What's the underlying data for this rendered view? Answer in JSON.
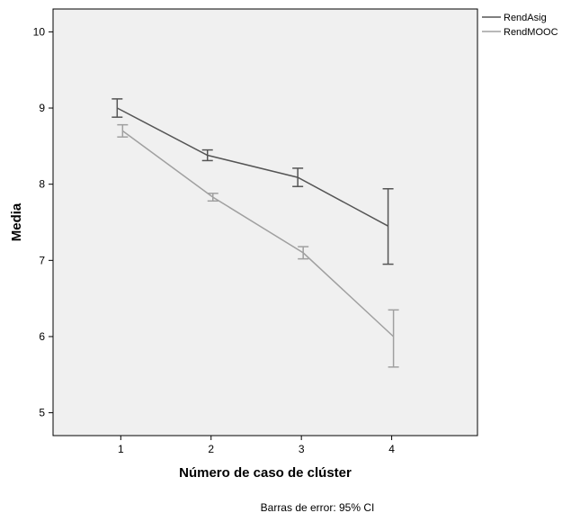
{
  "chart_data": {
    "type": "line",
    "x": [
      1,
      2,
      3,
      4
    ],
    "xlabel": "Número de caso de clúster",
    "ylabel": "Media",
    "ylim": [
      4.7,
      10.3
    ],
    "xlim": [
      0.25,
      4.95
    ],
    "xticks": [
      "1",
      "2",
      "3",
      "4"
    ],
    "yticks": [
      "5",
      "6",
      "7",
      "8",
      "9",
      "10"
    ],
    "grid": false,
    "legend_position": "top-right outside",
    "footnote": "Barras de error: 95% CI",
    "series": [
      {
        "name": "RendAsig",
        "color": "#555555",
        "values": [
          9.0,
          8.38,
          8.09,
          7.45
        ],
        "ci_low": [
          8.88,
          8.31,
          7.97,
          6.95
        ],
        "ci_high": [
          9.12,
          8.45,
          8.21,
          7.94
        ]
      },
      {
        "name": "RendMOOC",
        "color": "#a0a0a0",
        "values": [
          8.7,
          7.83,
          7.1,
          6.0
        ],
        "ci_low": [
          8.62,
          7.78,
          7.02,
          5.6
        ],
        "ci_high": [
          8.78,
          7.88,
          7.18,
          6.35
        ]
      }
    ]
  }
}
